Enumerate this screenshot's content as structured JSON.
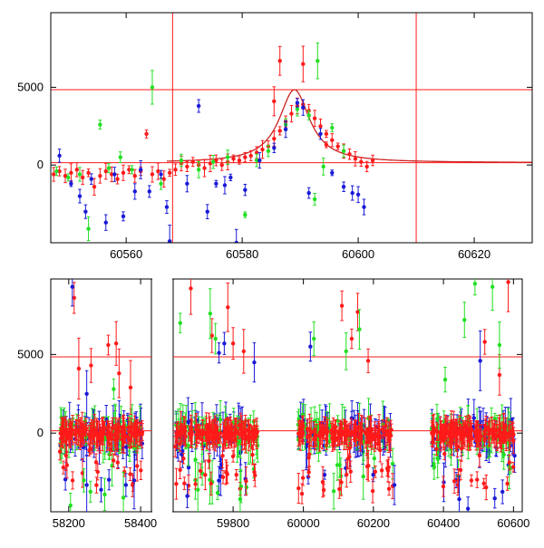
{
  "colors": {
    "red": "#ff1a1a",
    "green": "#22e022",
    "blue": "#1a1ad8",
    "axis": "#000000"
  },
  "chart_data": [
    {
      "type": "scatter",
      "panel": "top",
      "xlim": [
        60547,
        60630
      ],
      "ylim": [
        -5000,
        9800
      ],
      "x_ticks": [
        60560,
        60580,
        60600,
        60620
      ],
      "x_tick_labels": [
        "60560",
        "60580",
        "60600",
        "60620"
      ],
      "y_ticks": [
        0,
        5000
      ],
      "y_tick_labels": [
        "0",
        "5000"
      ],
      "hlines": [
        4850,
        150
      ],
      "vlines": [
        60568,
        60610
      ],
      "model_curve": {
        "baseline": 150,
        "peak_x": 60589,
        "peak_y": 4850,
        "width": 3.2,
        "from": 60567,
        "to": 60630
      },
      "series": [
        {
          "color": "red",
          "points": [
            [
              60547.5,
              -600
            ],
            [
              60548.5,
              -400
            ],
            [
              60549.5,
              -700
            ],
            [
              60550.5,
              -500
            ],
            [
              60551.5,
              -300
            ],
            [
              60552.5,
              -800
            ],
            [
              60553.5,
              -500
            ],
            [
              60554.5,
              -1400
            ],
            [
              60555.5,
              -700
            ],
            [
              60556.5,
              -400
            ],
            [
              60557.5,
              -600
            ],
            [
              60558.5,
              -900
            ],
            [
              60559.5,
              -500
            ],
            [
              60560.5,
              -300
            ],
            [
              60561.5,
              -700
            ],
            [
              60562.5,
              -400
            ],
            [
              60563.5,
              2000
            ],
            [
              60564.5,
              -600
            ],
            [
              60565.5,
              -400
            ],
            [
              60566.5,
              -900
            ],
            [
              60567.5,
              -500
            ],
            [
              60568.5,
              -300
            ],
            [
              60569.5,
              100
            ],
            [
              60570.5,
              -100
            ],
            [
              60571.5,
              200
            ],
            [
              60572.5,
              0
            ],
            [
              60573.5,
              -200
            ],
            [
              60574.5,
              100
            ],
            [
              60575.5,
              300
            ],
            [
              60576.5,
              0
            ],
            [
              60577.5,
              200
            ],
            [
              60578.5,
              400
            ],
            [
              60579.5,
              300
            ],
            [
              60580.5,
              500
            ],
            [
              60581.5,
              600
            ],
            [
              60582.5,
              800
            ],
            [
              60583.5,
              1000
            ],
            [
              60584.5,
              1200
            ],
            [
              60585.5,
              1700
            ],
            [
              60586.5,
              2200
            ],
            [
              60587.5,
              2800
            ],
            [
              60588.5,
              3300
            ],
            [
              60589.5,
              3800
            ],
            [
              60590.5,
              3900
            ],
            [
              60591.5,
              3500
            ],
            [
              60592.5,
              3000
            ],
            [
              60593.5,
              2500
            ],
            [
              60594.5,
              2000
            ],
            [
              60595.5,
              1600
            ],
            [
              60596.5,
              1200
            ],
            [
              60597.5,
              900
            ],
            [
              60598.5,
              700
            ],
            [
              60599.5,
              400
            ],
            [
              60600.5,
              200
            ],
            [
              60601.5,
              -100
            ],
            [
              60602.5,
              300
            ],
            [
              60586.5,
              6700
            ],
            [
              60590.5,
              6500
            ],
            [
              60585.5,
              4100
            ],
            [
              60594.5,
              1300
            ]
          ]
        },
        {
          "color": "green",
          "points": [
            [
              60548.0,
              -400
            ],
            [
              60550.0,
              -800
            ],
            [
              60552.0,
              -600
            ],
            [
              60553.5,
              -4100
            ],
            [
              60555.5,
              2600
            ],
            [
              60557.0,
              -200
            ],
            [
              60559.0,
              500
            ],
            [
              60561.0,
              -300
            ],
            [
              60564.5,
              5000
            ],
            [
              60566.0,
              -1200
            ],
            [
              60569.5,
              300
            ],
            [
              60572.5,
              -300
            ],
            [
              60575.0,
              200
            ],
            [
              60577.5,
              500
            ],
            [
              60580.5,
              -3200
            ],
            [
              60582.5,
              300
            ],
            [
              60584.5,
              900
            ],
            [
              60587.5,
              2600
            ],
            [
              60589.5,
              3600
            ],
            [
              60591.5,
              3200
            ],
            [
              60592.5,
              -2200
            ],
            [
              60593.0,
              6700
            ],
            [
              60595.5,
              2400
            ],
            [
              60597.5,
              900
            ],
            [
              60594.0,
              -100
            ]
          ]
        },
        {
          "color": "blue",
          "points": [
            [
              60548.5,
              600
            ],
            [
              60550.5,
              -1200
            ],
            [
              60552.0,
              -2000
            ],
            [
              60553.0,
              -3000
            ],
            [
              60554.0,
              -900
            ],
            [
              60556.5,
              -3700
            ],
            [
              60558.0,
              -600
            ],
            [
              60559.5,
              -3300
            ],
            [
              60561.5,
              -1700
            ],
            [
              60562.5,
              -300
            ],
            [
              60564.0,
              -1700
            ],
            [
              60566.0,
              -600
            ],
            [
              60567.0,
              -2700
            ],
            [
              60567.5,
              -4900
            ],
            [
              60570.5,
              -1200
            ],
            [
              60572.5,
              3800
            ],
            [
              60574.0,
              -3000
            ],
            [
              60575.5,
              -1200
            ],
            [
              60577.0,
              -1300
            ],
            [
              60578.0,
              -800
            ],
            [
              60579.0,
              -5000
            ],
            [
              60580.5,
              -1600
            ],
            [
              60583.0,
              300
            ],
            [
              60585.5,
              1100
            ],
            [
              60587.5,
              2300
            ],
            [
              60589.5,
              4000
            ],
            [
              60590.5,
              3700
            ],
            [
              60591.5,
              -1800
            ],
            [
              60593.5,
              2000
            ],
            [
              60595.5,
              -500
            ],
            [
              60597.5,
              -1400
            ],
            [
              60599.0,
              -1800
            ],
            [
              60600.0,
              -1900
            ],
            [
              60601.0,
              -2700
            ]
          ]
        }
      ]
    },
    {
      "type": "scatter",
      "panel": "bottom",
      "broken_axis": true,
      "segments": [
        {
          "xlim": [
            58150,
            58430
          ],
          "x_ticks": [
            58200,
            58400
          ],
          "x_tick_labels": [
            "58200",
            "58400"
          ],
          "scatter_x": [
            58175,
            58405
          ],
          "outliers": [
            {
              "color": "red",
              "points": [
                [
                  58215,
                  8600
                ],
                [
                  58228,
                  4100
                ],
                [
                  58262,
                  4300
                ],
                [
                  58310,
                  5600
                ],
                [
                  58340,
                  3800
                ],
                [
                  58372,
                  2900
                ],
                [
                  58332,
                  5700
                ]
              ]
            },
            {
              "color": "green",
              "points": [
                [
                  58205,
                  -4600
                ],
                [
                  58242,
                  -3000
                ],
                [
                  58300,
                  -3900
                ],
                [
                  58352,
                  -4100
                ],
                [
                  58325,
                  2800
                ]
              ]
            },
            {
              "color": "blue",
              "points": [
                [
                  58210,
                  9300
                ],
                [
                  58250,
                  -3300
                ],
                [
                  58290,
                  -3600
                ],
                [
                  58382,
                  -3000
                ],
                [
                  58250,
                  2500
                ]
              ]
            }
          ]
        },
        {
          "xlim": [
            59630,
            59900
          ],
          "x_ticks": [
            59800
          ],
          "x_tick_labels": [
            "59800"
          ],
          "scatter_x": [
            59635,
            59870
          ],
          "outliers": [
            {
              "color": "red",
              "points": [
                [
                  59680,
                  9200
                ],
                [
                  59740,
                  6200
                ],
                [
                  59785,
                  8000
                ],
                [
                  59800,
                  5700
                ],
                [
                  59830,
                  5200
                ]
              ]
            },
            {
              "color": "green",
              "points": [
                [
                  59650,
                  7000
                ],
                [
                  59700,
                  -3600
                ],
                [
                  59735,
                  7600
                ],
                [
                  59750,
                  6000
                ],
                [
                  59820,
                  -4200
                ]
              ]
            },
            {
              "color": "blue",
              "points": [
                [
                  59670,
                  -4000
                ],
                [
                  59760,
                  5100
                ],
                [
                  59775,
                  5700
                ],
                [
                  59860,
                  4500
                ]
              ]
            }
          ]
        },
        {
          "xlim": [
            59900,
            60625
          ],
          "x_ticks": [
            60000,
            60200,
            60400,
            60600
          ],
          "x_tick_labels": [
            "60000",
            "60200",
            "60400",
            "60600"
          ],
          "scatter_x": [
            [
              59985,
              60255
            ],
            [
              60365,
              60605
            ]
          ],
          "outliers": [
            {
              "color": "red",
              "points": [
                [
                  60110,
                  8100
                ],
                [
                  60155,
                  7700
                ],
                [
                  60138,
                  6000
                ],
                [
                  60185,
                  4600
                ],
                [
                  60518,
                  5800
                ],
                [
                  60560,
                  3700
                ],
                [
                  60585,
                  9600
                ]
              ]
            },
            {
              "color": "green",
              "points": [
                [
                  60030,
                  6000
                ],
                [
                  60122,
                  5200
                ],
                [
                  60160,
                  6600
                ],
                [
                  60405,
                  3400
                ],
                [
                  60460,
                  7200
                ],
                [
                  60490,
                  9500
                ],
                [
                  60540,
                  9300
                ],
                [
                  60560,
                  5600
                ]
              ]
            },
            {
              "color": "blue",
              "points": [
                [
                  60020,
                  5500
                ],
                [
                  60260,
                  -3300
                ],
                [
                  60445,
                  -4200
                ],
                [
                  60470,
                  -4800
                ],
                [
                  60505,
                  4600
                ]
              ]
            }
          ]
        }
      ],
      "ylim": [
        -5000,
        9800
      ],
      "y_ticks": [
        0,
        5000
      ],
      "y_tick_labels": [
        "0",
        "5000"
      ],
      "hlines": [
        4850,
        150
      ]
    }
  ]
}
